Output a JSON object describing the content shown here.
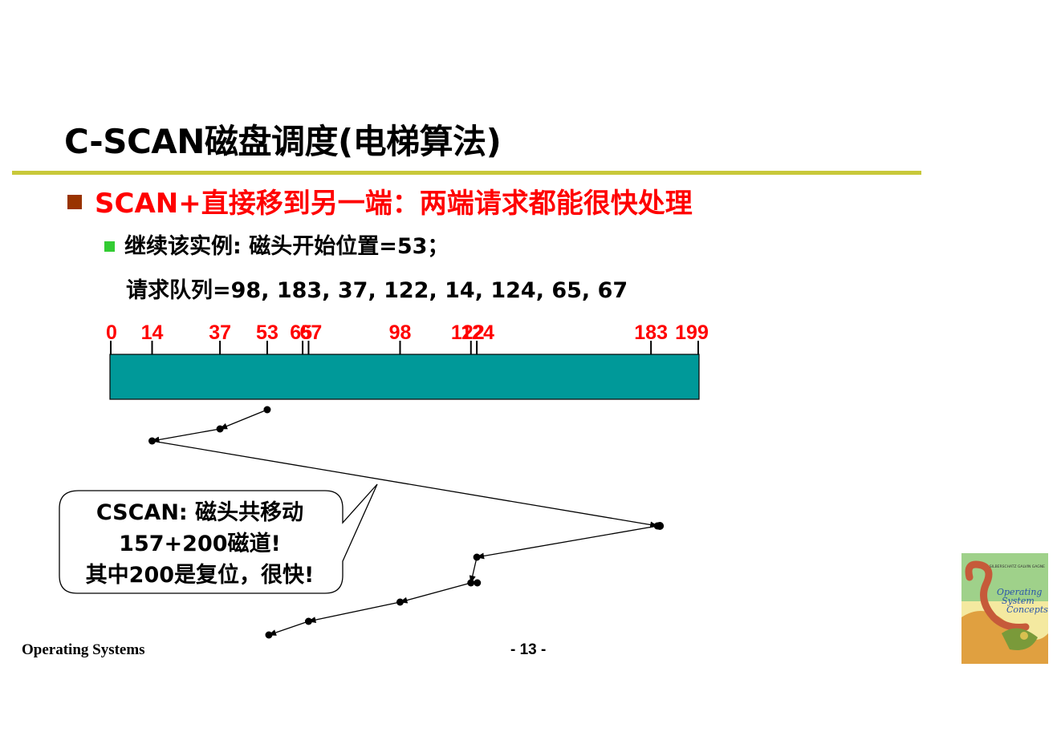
{
  "slide": {
    "title": "C-SCAN磁盘调度(电梯算法)",
    "bullet1": "SCAN+直接移到另一端：两端请求都能很快处理",
    "bullet2": "继续该实例: 磁头开始位置=53；",
    "queue": "请求队列=98, 183, 37, 122, 14, 124, 65, 67",
    "callout": {
      "line1": "CSCAN: 磁头共移动",
      "line2": "157+200磁道!",
      "line3": "其中200是复位，很快!"
    },
    "footer_left": "Operating Systems",
    "footer_center": "- 13 -",
    "book_cover": {
      "authors": "SILBERSCHATZ GALVIN GAGNE",
      "title_lines": [
        "Operating",
        "System",
        "Concepts"
      ]
    }
  },
  "colors": {
    "title_rule": "#c8c83a",
    "bullet1_text": "#ff0000",
    "bullet1_marker": "#993300",
    "bullet2_marker": "#33cc33",
    "axis_labels": "#ff0000",
    "track_bar": "#009999"
  },
  "diagram": {
    "track_min": 0,
    "track_max": 199,
    "axis_labels": [
      "0",
      "14",
      "37",
      "53",
      "65",
      "67",
      "98",
      "122",
      "124",
      "183",
      "199"
    ],
    "head_path": [
      53,
      37,
      14,
      183,
      124,
      122,
      98,
      67,
      65
    ]
  }
}
